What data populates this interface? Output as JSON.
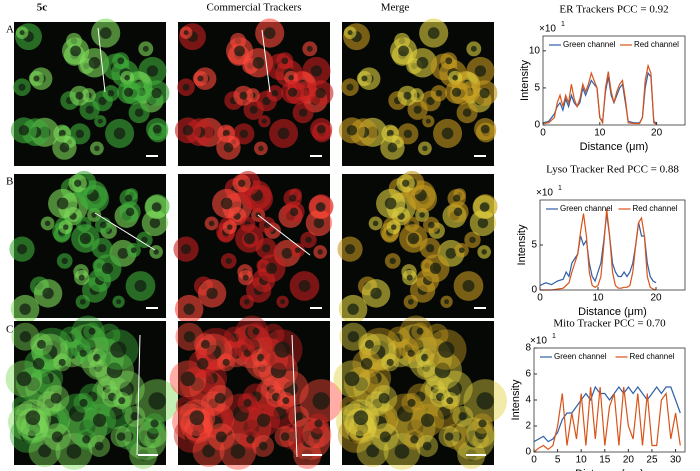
{
  "figure": {
    "column_headers": [
      "5c",
      "Commercial Trackers",
      "Merge"
    ],
    "row_labels": [
      "A",
      "B",
      "C"
    ]
  },
  "chart_data": [
    {
      "type": "line",
      "title": "ER Trackers PCC = 0.92",
      "xlabel": "Distance (μm)",
      "ylabel": "Intensity",
      "y_scale_label": {
        "base": "×10",
        "exponent": "1"
      },
      "x": [
        0,
        1,
        2,
        2.5,
        3,
        3.5,
        4,
        4.5,
        5,
        5.5,
        6,
        6.5,
        7,
        7.5,
        8,
        8.5,
        9,
        9.5,
        10,
        10.5,
        11,
        11.5,
        12,
        12.5,
        13,
        13.5,
        14,
        14.5,
        15,
        16,
        17,
        17.5,
        18,
        18.5,
        19,
        19.5,
        20
      ],
      "series": [
        {
          "name": "Green channel",
          "color": "#2f5fa8",
          "values": [
            0.3,
            0.5,
            1.5,
            2.5,
            3,
            2,
            3.5,
            2.5,
            4,
            3,
            2.5,
            3,
            5,
            4,
            5,
            6,
            5.5,
            5,
            1,
            0.5,
            4.5,
            6.5,
            4,
            3,
            4,
            5,
            5.5,
            3,
            0.5,
            0.3,
            0.3,
            1,
            5,
            7,
            6.5,
            0.5,
            0.2
          ]
        },
        {
          "name": "Red channel",
          "color": "#d95319",
          "values": [
            0.2,
            0.3,
            1,
            3,
            4,
            2.5,
            4,
            3,
            5.5,
            3.5,
            2.5,
            3.5,
            5.5,
            4.5,
            5.5,
            7,
            6,
            5,
            1,
            0.3,
            5,
            7.2,
            4.5,
            3,
            4.5,
            5.5,
            6,
            3.5,
            0.3,
            0.2,
            0.2,
            1,
            6,
            8,
            7,
            0.3,
            0.1
          ]
        }
      ],
      "xlim": [
        0,
        25
      ],
      "xticks": [
        0,
        10,
        20
      ],
      "ylim": [
        0,
        12
      ],
      "yticks": [
        0,
        5,
        10
      ],
      "legend": "top"
    },
    {
      "type": "line",
      "title": "Lyso Tracker Red PCC = 0.88",
      "xlabel": "Distance (μm)",
      "ylabel": "Intensity",
      "y_scale_label": {
        "base": "×10",
        "exponent": "1"
      },
      "x": [
        0,
        1,
        2,
        3,
        4,
        4.5,
        5,
        5.5,
        6,
        6.5,
        7,
        7.5,
        8,
        8.5,
        9,
        9.5,
        10,
        10.5,
        11,
        11.5,
        12,
        12.5,
        13,
        13.5,
        14,
        14.5,
        15,
        15.5,
        16,
        16.5,
        17,
        17.5,
        18,
        18.5,
        19,
        19.5,
        20
      ],
      "series": [
        {
          "name": "Green channel",
          "color": "#2f5fa8",
          "values": [
            0.5,
            0.8,
            0.6,
            1,
            1.2,
            2,
            1.5,
            3,
            3.5,
            4,
            6,
            5,
            5.5,
            3,
            1.5,
            1,
            2,
            3,
            5.5,
            8.5,
            6,
            3,
            2,
            1.5,
            1.5,
            2,
            1.5,
            2,
            3,
            5,
            7.5,
            6,
            6,
            3,
            1.5,
            1,
            0.8
          ]
        },
        {
          "name": "Red channel",
          "color": "#d95319",
          "values": [
            0,
            0,
            0,
            0.1,
            0.2,
            0.5,
            0.8,
            2,
            3,
            4,
            6.5,
            8.5,
            6,
            2,
            0.5,
            0.3,
            0.5,
            1.5,
            5,
            9,
            6,
            2,
            0.5,
            0.2,
            0.2,
            0.3,
            0.3,
            0.5,
            2,
            5,
            7.5,
            8,
            6,
            1.5,
            0.3,
            0.1,
            0
          ]
        }
      ],
      "xlim": [
        0,
        25
      ],
      "xticks": [
        0,
        10,
        20
      ],
      "ylim": [
        0,
        10
      ],
      "yticks": [
        0,
        5
      ],
      "legend": "top"
    },
    {
      "type": "line",
      "title": "Mito Tracker PCC = 0.70",
      "xlabel": "Distance (μm)",
      "ylabel": "Intensity",
      "y_scale_label": {
        "base": "×10",
        "exponent": "1"
      },
      "x": [
        0,
        1,
        2,
        3,
        4,
        5,
        6,
        7,
        8,
        9,
        10,
        11,
        12,
        13,
        14,
        15,
        16,
        17,
        18,
        19,
        20,
        21,
        22,
        23,
        24,
        25,
        26,
        27,
        28,
        29,
        30,
        31
      ],
      "series": [
        {
          "name": "Green channel",
          "color": "#2f5fa8",
          "values": [
            0.8,
            1,
            1.2,
            0.8,
            1,
            1.5,
            2.5,
            3,
            3,
            3.5,
            4,
            4.5,
            4,
            5,
            4.5,
            4.5,
            4,
            4.5,
            5,
            4.5,
            5,
            4.5,
            5,
            4.5,
            4,
            4.5,
            5,
            4.5,
            5,
            5,
            4,
            3
          ]
        },
        {
          "name": "Red channel",
          "color": "#d95319",
          "values": [
            0,
            0.3,
            0.5,
            0.2,
            0.5,
            2,
            4.5,
            0.5,
            3,
            1,
            4.5,
            0.5,
            5,
            1,
            5,
            0.5,
            3.5,
            4.5,
            0.5,
            5,
            2,
            1,
            4.5,
            0.5,
            4.5,
            0.5,
            0.5,
            4,
            4.5,
            1,
            3,
            0.5
          ]
        }
      ],
      "xlim": [
        0,
        32
      ],
      "xticks": [
        0,
        5,
        10,
        15,
        20,
        25,
        30
      ],
      "ylim": [
        0,
        8
      ],
      "yticks": [
        0,
        2,
        4,
        6,
        8
      ],
      "legend": "top"
    }
  ]
}
